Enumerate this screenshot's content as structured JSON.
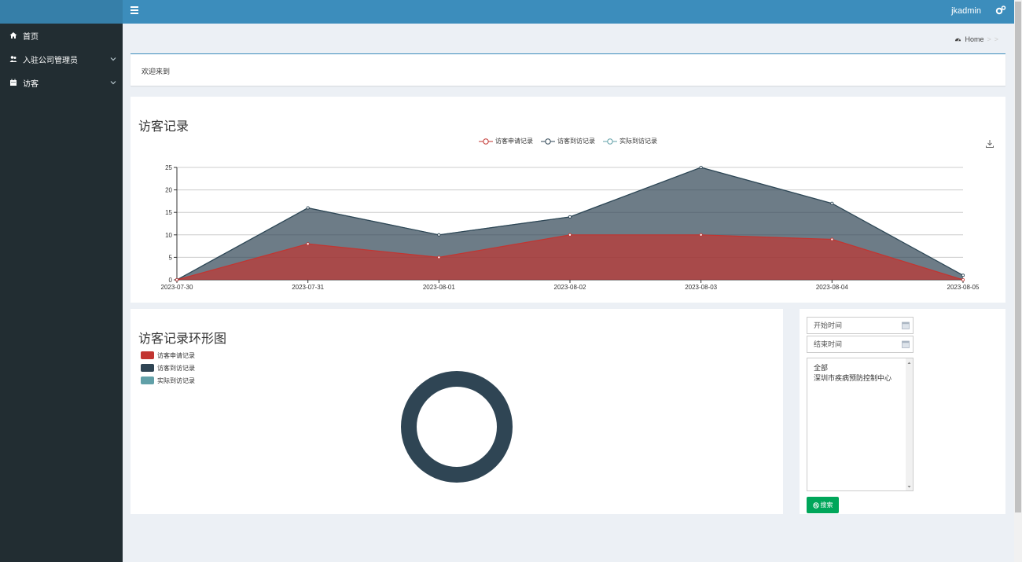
{
  "header": {
    "menu_icon": "hamburger-icon",
    "username": "jkadmin",
    "settings_icon": "gears-icon"
  },
  "sidebar": {
    "items": [
      {
        "label": "首页",
        "icon": "home-icon"
      },
      {
        "label": "入驻公司管理员",
        "icon": "users-icon"
      },
      {
        "label": "访客",
        "icon": "calendar-icon"
      }
    ]
  },
  "breadcrumb": {
    "home": "Home",
    "sep1": ">",
    "sep2": ">"
  },
  "welcome": {
    "text": "欢迎来到"
  },
  "area_chart": {
    "title": "访客记录",
    "legend": [
      "访客申请记录",
      "访客到访记录",
      "实际到访记录"
    ]
  },
  "donut_chart": {
    "title": "访客记录环形图",
    "legend": [
      "访客申请记录",
      "访客到访记录",
      "实际到访记录"
    ]
  },
  "filter": {
    "start_placeholder": "开始时间",
    "end_placeholder": "结束时间",
    "options": [
      "全部",
      "深圳市疾病预防控制中心"
    ],
    "search_label": "搜索"
  },
  "colors": {
    "apply": "#c23531",
    "visit": "#2f4554",
    "actual": "#61a0a8",
    "topbar": "#3c8dbc",
    "sidebar": "#222d32",
    "button": "#00a65a"
  },
  "chart_data": [
    {
      "type": "area",
      "title": "访客记录",
      "x": [
        "2023-07-30",
        "2023-07-31",
        "2023-08-01",
        "2023-08-02",
        "2023-08-03",
        "2023-08-04",
        "2023-08-05"
      ],
      "ylim": [
        0,
        25
      ],
      "yticks": [
        0,
        5,
        10,
        15,
        20,
        25
      ],
      "grid": true,
      "legend_position": "top-center",
      "series": [
        {
          "name": "访客申请记录",
          "values": [
            0,
            8,
            5,
            10,
            10,
            9,
            0
          ]
        },
        {
          "name": "访客到访记录",
          "values": [
            0,
            16,
            10,
            14,
            25,
            17,
            1
          ]
        },
        {
          "name": "实际到访记录",
          "values": [
            0,
            16,
            10,
            14,
            25,
            17,
            1
          ]
        }
      ]
    },
    {
      "type": "pie",
      "title": "访客记录环形图",
      "categories": [
        "访客申请记录",
        "访客到访记录",
        "实际到访记录"
      ],
      "values": [
        0,
        1,
        0
      ],
      "legend_position": "top-left"
    }
  ]
}
